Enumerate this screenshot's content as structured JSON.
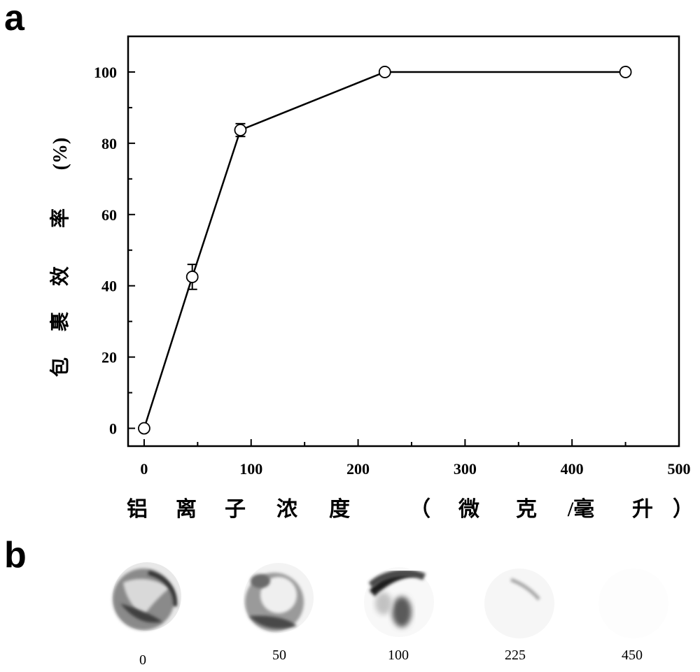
{
  "panels": {
    "a": "a",
    "b": "b"
  },
  "chart_data": {
    "type": "line",
    "title": "",
    "xlabel_chars": [
      "铝",
      "离",
      "子",
      "浓",
      "度",
      "（",
      "微",
      "克",
      "/毫",
      "升",
      "）"
    ],
    "ylabel_chars": [
      "包",
      "裹",
      "效",
      "率",
      "(%)"
    ],
    "xlim": [
      -15,
      500
    ],
    "ylim": [
      -5,
      110
    ],
    "xticks": [
      "0",
      "100",
      "200",
      "300",
      "400",
      "500"
    ],
    "yticks": [
      "0",
      "20",
      "40",
      "60",
      "80",
      "100"
    ],
    "xtick_values": [
      0,
      100,
      200,
      300,
      400,
      500
    ],
    "ytick_values": [
      0,
      20,
      40,
      60,
      80,
      100
    ],
    "grid": false,
    "legend": "none",
    "series": [
      {
        "x": [
          0,
          45,
          90,
          225,
          450
        ],
        "y": [
          0,
          42.5,
          83.7,
          100,
          100
        ],
        "yerr": [
          0,
          3.5,
          1.8,
          0.5,
          0
        ]
      }
    ]
  },
  "samples": {
    "labels": [
      "0",
      "50",
      "100",
      "225",
      "450"
    ]
  }
}
